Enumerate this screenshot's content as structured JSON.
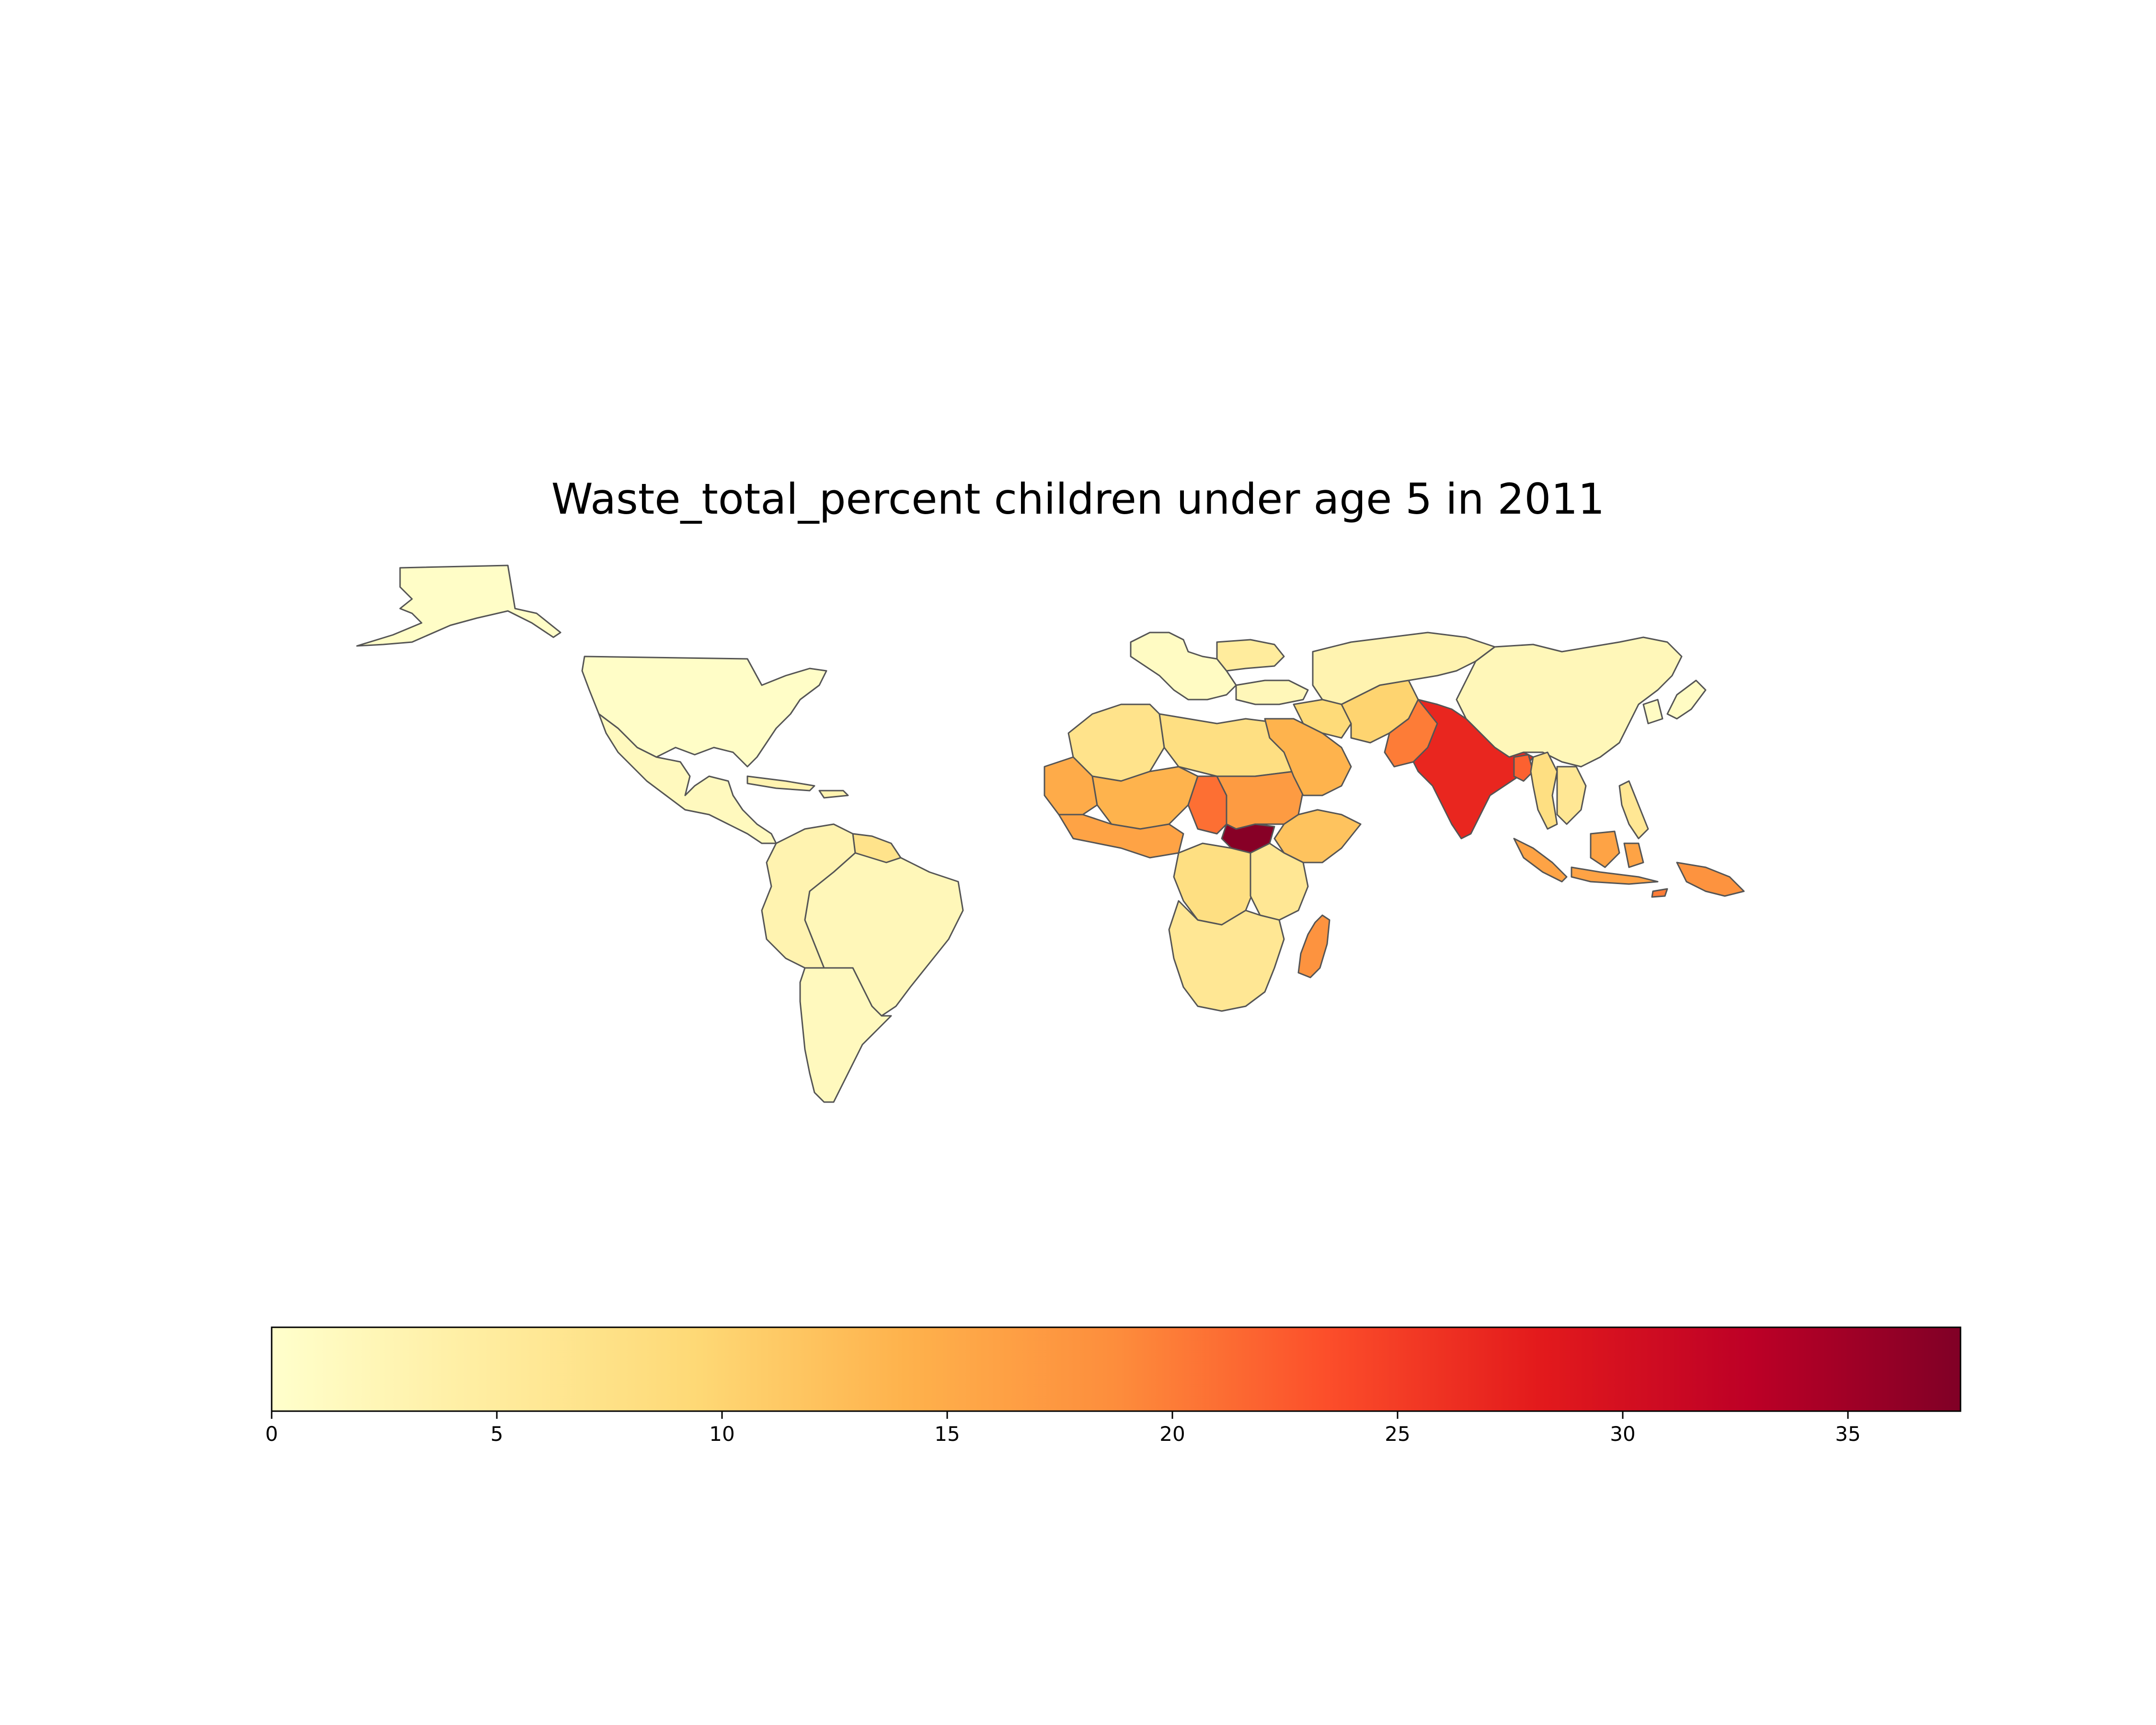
{
  "title": "Waste_total_percent children under age 5 in 2011",
  "colorbar": {
    "min": 0,
    "max": 37.5,
    "ticks": [
      "0",
      "5",
      "10",
      "15",
      "20",
      "25",
      "30",
      "35"
    ],
    "colormap": [
      "#ffffcc",
      "#ffeda0",
      "#fed976",
      "#feb24c",
      "#fd8d3c",
      "#fc4e2a",
      "#e31a1c",
      "#bd0026",
      "#800026"
    ]
  },
  "regions": [
    {
      "id": "alaska",
      "value": 0.5
    },
    {
      "id": "north-america",
      "value": 0.5
    },
    {
      "id": "mexico-central-america",
      "value": 1.5
    },
    {
      "id": "caribbean",
      "value": 3
    },
    {
      "id": "south-america-north",
      "value": 3
    },
    {
      "id": "guyana-suriname",
      "value": 7
    },
    {
      "id": "brazil",
      "value": 2
    },
    {
      "id": "south-america-south",
      "value": 1.5
    },
    {
      "id": "europe-west",
      "value": 1
    },
    {
      "id": "europe-east",
      "value": 5
    },
    {
      "id": "turkey-caucasus",
      "value": 2
    },
    {
      "id": "russia-central-asia",
      "value": 3
    },
    {
      "id": "china-mongolia",
      "value": 2
    },
    {
      "id": "korea-japan",
      "value": 1
    },
    {
      "id": "north-africa",
      "value": 7
    },
    {
      "id": "libya-egypt",
      "value": 8
    },
    {
      "id": "west-africa-sahel",
      "value": 14
    },
    {
      "id": "senegal-mauritania",
      "value": 15
    },
    {
      "id": "gulf-of-guinea",
      "value": 16
    },
    {
      "id": "chad",
      "value": 21
    },
    {
      "id": "sudan",
      "value": 17
    },
    {
      "id": "south-sudan",
      "value": 37
    },
    {
      "id": "horn-of-africa",
      "value": 12
    },
    {
      "id": "arabian-peninsula",
      "value": 14
    },
    {
      "id": "central-africa",
      "value": 8
    },
    {
      "id": "east-africa",
      "value": 6
    },
    {
      "id": "southern-africa",
      "value": 6
    },
    {
      "id": "madagascar",
      "value": 18
    },
    {
      "id": "middle-east",
      "value": 9
    },
    {
      "id": "iran-afghanistan",
      "value": 10
    },
    {
      "id": "pakistan",
      "value": 20
    },
    {
      "id": "india",
      "value": 27
    },
    {
      "id": "bangladesh",
      "value": 22
    },
    {
      "id": "myanmar-thailand",
      "value": 8
    },
    {
      "id": "indochina",
      "value": 6
    },
    {
      "id": "philippines",
      "value": 6
    },
    {
      "id": "indonesia",
      "value": 16
    },
    {
      "id": "papua-new-guinea",
      "value": 18
    },
    {
      "id": "timor",
      "value": 20
    }
  ]
}
